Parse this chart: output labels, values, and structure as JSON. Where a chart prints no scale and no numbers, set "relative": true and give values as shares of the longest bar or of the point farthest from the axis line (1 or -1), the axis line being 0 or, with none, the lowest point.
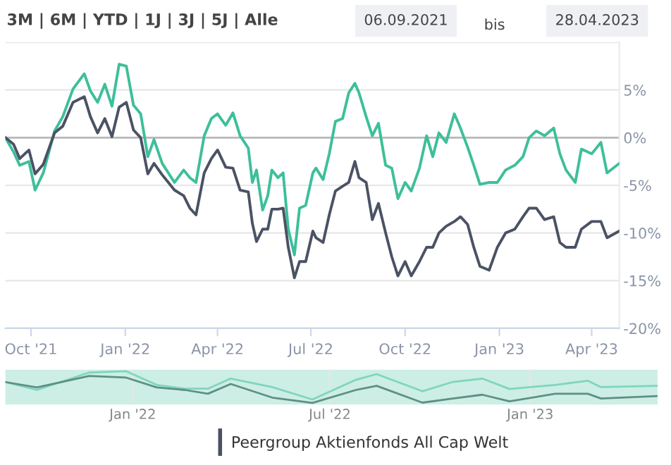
{
  "chart_data": [
    {
      "type": "line",
      "annotations": [
        "3M | 6M | YTD | 1J | 3J | 5J | Alle",
        "06.09.2021",
        "bis",
        "28.04.2023"
      ],
      "x": [
        "2021-09-06",
        "2021-09-14",
        "2021-09-20",
        "2021-09-29",
        "2021-10-05",
        "2021-10-13",
        "2021-10-24",
        "2021-11-01",
        "2021-11-11",
        "2021-11-22",
        "2021-11-28",
        "2021-12-05",
        "2021-12-12",
        "2021-12-19",
        "2021-12-26",
        "2022-01-02",
        "2022-01-09",
        "2022-01-16",
        "2022-01-23",
        "2022-01-29",
        "2022-02-06",
        "2022-02-18",
        "2022-02-27",
        "2022-03-05",
        "2022-03-11",
        "2022-03-19",
        "2022-03-26",
        "2022-04-01",
        "2022-04-09",
        "2022-04-16",
        "2022-04-23",
        "2022-05-01",
        "2022-05-05",
        "2022-05-09",
        "2022-05-15",
        "2022-05-20",
        "2022-05-24",
        "2022-05-30",
        "2022-06-04",
        "2022-06-09",
        "2022-06-15",
        "2022-06-20",
        "2022-06-26",
        "2022-07-03",
        "2022-07-06",
        "2022-07-13",
        "2022-07-19",
        "2022-07-25",
        "2022-08-01",
        "2022-08-07",
        "2022-08-13",
        "2022-08-17",
        "2022-08-24",
        "2022-08-30",
        "2022-09-05",
        "2022-09-12",
        "2022-09-18",
        "2022-09-24",
        "2022-10-01",
        "2022-10-07",
        "2022-10-15",
        "2022-10-22",
        "2022-10-28",
        "2022-11-03",
        "2022-11-10",
        "2022-11-18",
        "2022-11-24",
        "2022-12-01",
        "2022-12-07",
        "2022-12-13",
        "2022-12-22",
        "2022-12-30",
        "2023-01-07",
        "2023-01-16",
        "2023-01-24",
        "2023-01-30",
        "2023-02-06",
        "2023-02-14",
        "2023-02-23",
        "2023-03-01",
        "2023-03-07",
        "2023-03-16",
        "2023-03-22",
        "2023-04-01",
        "2023-04-10",
        "2023-04-16",
        "2023-04-28"
      ],
      "series": [
        {
          "color": "#3dbf9a",
          "values": [
            0,
            -1.5,
            -2.9,
            -2.5,
            -5.5,
            -3.7,
            0.7,
            2.2,
            5.1,
            6.7,
            4.9,
            3.7,
            5.6,
            3.3,
            7.7,
            7.5,
            3.4,
            2.5,
            -2.0,
            -0.2,
            -2.7,
            -4.7,
            -3.4,
            -4.2,
            -4.7,
            0.2,
            2.0,
            2.5,
            1.3,
            2.6,
            0.2,
            -1.1,
            -4.7,
            -3.4,
            -7.6,
            -6.1,
            -3.4,
            -4.2,
            -3.7,
            -9.6,
            -12.3,
            -7.4,
            -7.1,
            -3.7,
            -3.2,
            -4.4,
            -1.7,
            1.7,
            2.0,
            4.7,
            5.7,
            4.7,
            2.2,
            0.2,
            1.5,
            -2.9,
            -3.2,
            -6.4,
            -4.7,
            -5.6,
            -3.2,
            0.2,
            -2.0,
            0.5,
            -0.5,
            2.5,
            1.0,
            -1.0,
            -2.9,
            -4.9,
            -4.7,
            -4.7,
            -3.4,
            -2.9,
            -2.0,
            0,
            0.7,
            0.2,
            1.0,
            -1.7,
            -3.4,
            -4.7,
            -1.2,
            -1.7,
            -0.5,
            -3.7,
            -2.7
          ]
        },
        {
          "name": "Peergroup Aktienfonds All Cap Welt",
          "color": "#4a5264",
          "values": [
            0,
            -0.7,
            -2.2,
            -1.3,
            -3.8,
            -2.8,
            0.5,
            1.2,
            3.7,
            4.3,
            2.2,
            0.5,
            2.0,
            0.1,
            3.2,
            3.7,
            0.8,
            0,
            -3.8,
            -2.7,
            -3.9,
            -5.5,
            -6.1,
            -7.4,
            -8.1,
            -3.7,
            -2.2,
            -1.3,
            -3.1,
            -3.2,
            -5.5,
            -5.7,
            -9.0,
            -10.9,
            -9.6,
            -9.6,
            -7.5,
            -7.5,
            -7.4,
            -11.5,
            -14.7,
            -13.0,
            -13.0,
            -9.8,
            -10.5,
            -11.0,
            -8.1,
            -5.6,
            -5.1,
            -4.7,
            -2.5,
            -4.2,
            -4.7,
            -8.6,
            -6.9,
            -10.0,
            -12.5,
            -14.5,
            -13.0,
            -14.5,
            -13.0,
            -11.5,
            -11.5,
            -10.0,
            -9.3,
            -8.8,
            -8.3,
            -9.1,
            -11.5,
            -13.5,
            -13.9,
            -11.5,
            -10.0,
            -9.6,
            -8.3,
            -7.4,
            -7.4,
            -8.6,
            -8.3,
            -11.0,
            -11.5,
            -11.5,
            -9.6,
            -8.8,
            -8.8,
            -10.5,
            -9.8
          ]
        }
      ],
      "xlim": [
        "2021-09-06",
        "2023-04-28"
      ],
      "xticks": [
        {
          "value": "2021-10-01",
          "label": "Oct '21"
        },
        {
          "value": "2022-01-01",
          "label": "Jan '22"
        },
        {
          "value": "2022-04-01",
          "label": "Apr '22"
        },
        {
          "value": "2022-07-01",
          "label": "Jul '22"
        },
        {
          "value": "2022-10-01",
          "label": "Oct '22"
        },
        {
          "value": "2023-01-01",
          "label": "Jan '23"
        },
        {
          "value": "2023-04-01",
          "label": "Apr '23"
        }
      ],
      "ylim": [
        -20,
        10
      ],
      "yticks": [
        {
          "value": -20,
          "label": "-20%"
        },
        {
          "value": -15,
          "label": "-15%"
        },
        {
          "value": -10,
          "label": "-10%"
        },
        {
          "value": -5,
          "label": "-5%"
        },
        {
          "value": 0,
          "label": "0%"
        },
        {
          "value": 5,
          "label": "5%"
        },
        {
          "value": 10,
          "label": null
        }
      ],
      "ref_lines": [
        {
          "axis": "y",
          "value": 0,
          "color": "#b8b8b8"
        }
      ],
      "grid": "y",
      "legend": "bottom",
      "marker": "none",
      "line_style": "solid"
    },
    {
      "type": "line",
      "relative": true,
      "x": [
        "2021-09-06",
        "2021-10-05",
        "2021-11-22",
        "2021-12-26",
        "2022-01-23",
        "2022-02-18",
        "2022-03-11",
        "2022-04-01",
        "2022-05-09",
        "2022-06-15",
        "2022-07-25",
        "2022-08-13",
        "2022-09-24",
        "2022-10-22",
        "2022-11-18",
        "2022-12-13",
        "2023-01-24",
        "2023-02-23",
        "2023-03-07",
        "2023-04-28"
      ],
      "series": [
        {
          "color": "#7fd6bd",
          "values": [
            0.66,
            0.41,
            0.96,
            1.0,
            0.57,
            0.45,
            0.45,
            0.77,
            0.5,
            0.11,
            0.73,
            0.91,
            0.37,
            0.665,
            0.77,
            0.44,
            0.57,
            0.7,
            0.5,
            0.54
          ]
        },
        {
          "color": "#5f8f86",
          "values": [
            0.66,
            0.49,
            0.85,
            0.8,
            0.49,
            0.41,
            0.29,
            0.6,
            0.17,
            0,
            0.41,
            0.54,
            0.01,
            0.14,
            0.26,
            0.05,
            0.29,
            0.29,
            0.14,
            0.22
          ]
        }
      ],
      "xlim": [
        "2021-09-06",
        "2023-04-28"
      ],
      "xticks": [
        {
          "value": "2022-01-01",
          "label": "Jan '22"
        },
        {
          "value": "2022-07-01",
          "label": "Jul '22"
        },
        {
          "value": "2023-01-01",
          "label": "Jan '23"
        }
      ],
      "grid": "x",
      "tick_labels": "x"
    }
  ]
}
